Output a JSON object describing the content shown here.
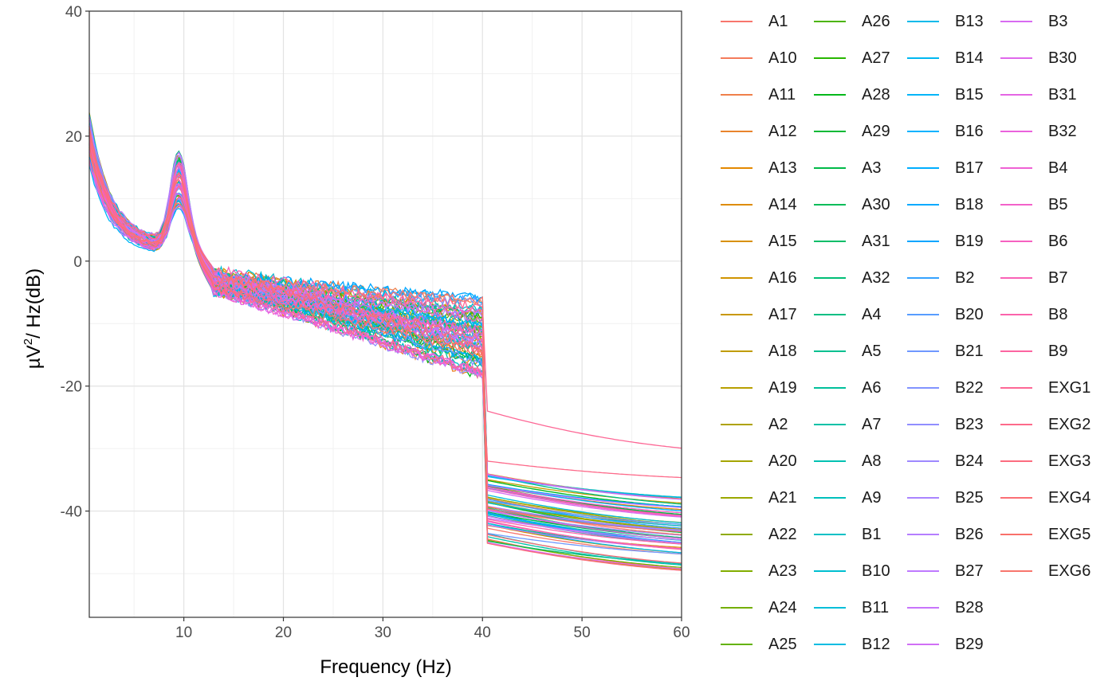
{
  "chart_data": {
    "type": "line",
    "xlabel": "Frequency (Hz)",
    "ylabel_main": "µV",
    "ylabel_sup": "2",
    "ylabel_rest": "/ Hz(dB)",
    "xlim": [
      0.5,
      60
    ],
    "ylim": [
      -57,
      40
    ],
    "x_ticks": [
      10,
      20,
      30,
      40,
      50,
      60
    ],
    "y_ticks": [
      -40,
      -20,
      0,
      20,
      40
    ],
    "x_tick_labels": [
      "10",
      "20",
      "30",
      "40",
      "50",
      "60"
    ],
    "y_tick_labels": [
      "-40",
      "-20",
      "0",
      "20",
      "40"
    ],
    "grid": true,
    "legend_position": "right",
    "legend_columns": 4,
    "series": [
      {
        "name": "A1",
        "color": "#F8766D"
      },
      {
        "name": "A10",
        "color": "#F47B5B"
      },
      {
        "name": "A11",
        "color": "#EF7F4A"
      },
      {
        "name": "A12",
        "color": "#E9842C"
      },
      {
        "name": "A13",
        "color": "#E48800"
      },
      {
        "name": "A14",
        "color": "#DE8C00"
      },
      {
        "name": "A15",
        "color": "#D89000"
      },
      {
        "name": "A16",
        "color": "#D09400"
      },
      {
        "name": "A17",
        "color": "#C99800"
      },
      {
        "name": "A18",
        "color": "#C19C00"
      },
      {
        "name": "A19",
        "color": "#B89F00"
      },
      {
        "name": "A2",
        "color": "#AFA200"
      },
      {
        "name": "A20",
        "color": "#A5A500"
      },
      {
        "name": "A21",
        "color": "#9BA800"
      },
      {
        "name": "A22",
        "color": "#8FAA00"
      },
      {
        "name": "A23",
        "color": "#82AD00"
      },
      {
        "name": "A24",
        "color": "#74AF00"
      },
      {
        "name": "A25",
        "color": "#63B200"
      },
      {
        "name": "A26",
        "color": "#4CB400"
      },
      {
        "name": "A27",
        "color": "#28B600"
      },
      {
        "name": "A28",
        "color": "#00B81A"
      },
      {
        "name": "A29",
        "color": "#00B935"
      },
      {
        "name": "A3",
        "color": "#00BA48"
      },
      {
        "name": "A30",
        "color": "#00BC59"
      },
      {
        "name": "A31",
        "color": "#00BD68"
      },
      {
        "name": "A32",
        "color": "#00BE76"
      },
      {
        "name": "A4",
        "color": "#00BF83"
      },
      {
        "name": "A5",
        "color": "#00C08F"
      },
      {
        "name": "A6",
        "color": "#00C09B"
      },
      {
        "name": "A7",
        "color": "#00C1A7"
      },
      {
        "name": "A8",
        "color": "#00C1B2"
      },
      {
        "name": "A9",
        "color": "#00C0BC"
      },
      {
        "name": "B1",
        "color": "#00C0C6"
      },
      {
        "name": "B10",
        "color": "#00BFD0"
      },
      {
        "name": "B11",
        "color": "#00BED9"
      },
      {
        "name": "B12",
        "color": "#00BCE2"
      },
      {
        "name": "B13",
        "color": "#00BAEA"
      },
      {
        "name": "B14",
        "color": "#00B8F1"
      },
      {
        "name": "B15",
        "color": "#00B5F8"
      },
      {
        "name": "B16",
        "color": "#00B2FF"
      },
      {
        "name": "B17",
        "color": "#00AEFF"
      },
      {
        "name": "B18",
        "color": "#00AAFF"
      },
      {
        "name": "B19",
        "color": "#00A5FF"
      },
      {
        "name": "B2",
        "color": "#35A2FF"
      },
      {
        "name": "B20",
        "color": "#589DFF"
      },
      {
        "name": "B21",
        "color": "#6F98FF"
      },
      {
        "name": "B22",
        "color": "#8193FF"
      },
      {
        "name": "B23",
        "color": "#918EFF"
      },
      {
        "name": "B24",
        "color": "#9E89FF"
      },
      {
        "name": "B25",
        "color": "#AA84FF"
      },
      {
        "name": "B26",
        "color": "#B57EFF"
      },
      {
        "name": "B27",
        "color": "#BF79FF"
      },
      {
        "name": "B28",
        "color": "#C874FB"
      },
      {
        "name": "B29",
        "color": "#D06FF6"
      },
      {
        "name": "B3",
        "color": "#D86BF1"
      },
      {
        "name": "B30",
        "color": "#DF68EB"
      },
      {
        "name": "B31",
        "color": "#E565E4"
      },
      {
        "name": "B32",
        "color": "#EA62DC"
      },
      {
        "name": "B4",
        "color": "#EF61D4"
      },
      {
        "name": "B5",
        "color": "#F361CA"
      },
      {
        "name": "B6",
        "color": "#F661C0"
      },
      {
        "name": "B7",
        "color": "#F962B6"
      },
      {
        "name": "B8",
        "color": "#FB63AB"
      },
      {
        "name": "B9",
        "color": "#FC65A0"
      },
      {
        "name": "EXG1",
        "color": "#FD6795"
      },
      {
        "name": "EXG2",
        "color": "#FD6A8A"
      },
      {
        "name": "EXG3",
        "color": "#FC6C7F"
      },
      {
        "name": "EXG4",
        "color": "#FB6E74"
      },
      {
        "name": "EXG5",
        "color": "#F9706A"
      },
      {
        "name": "EXG6",
        "color": "#F8766D"
      }
    ]
  }
}
